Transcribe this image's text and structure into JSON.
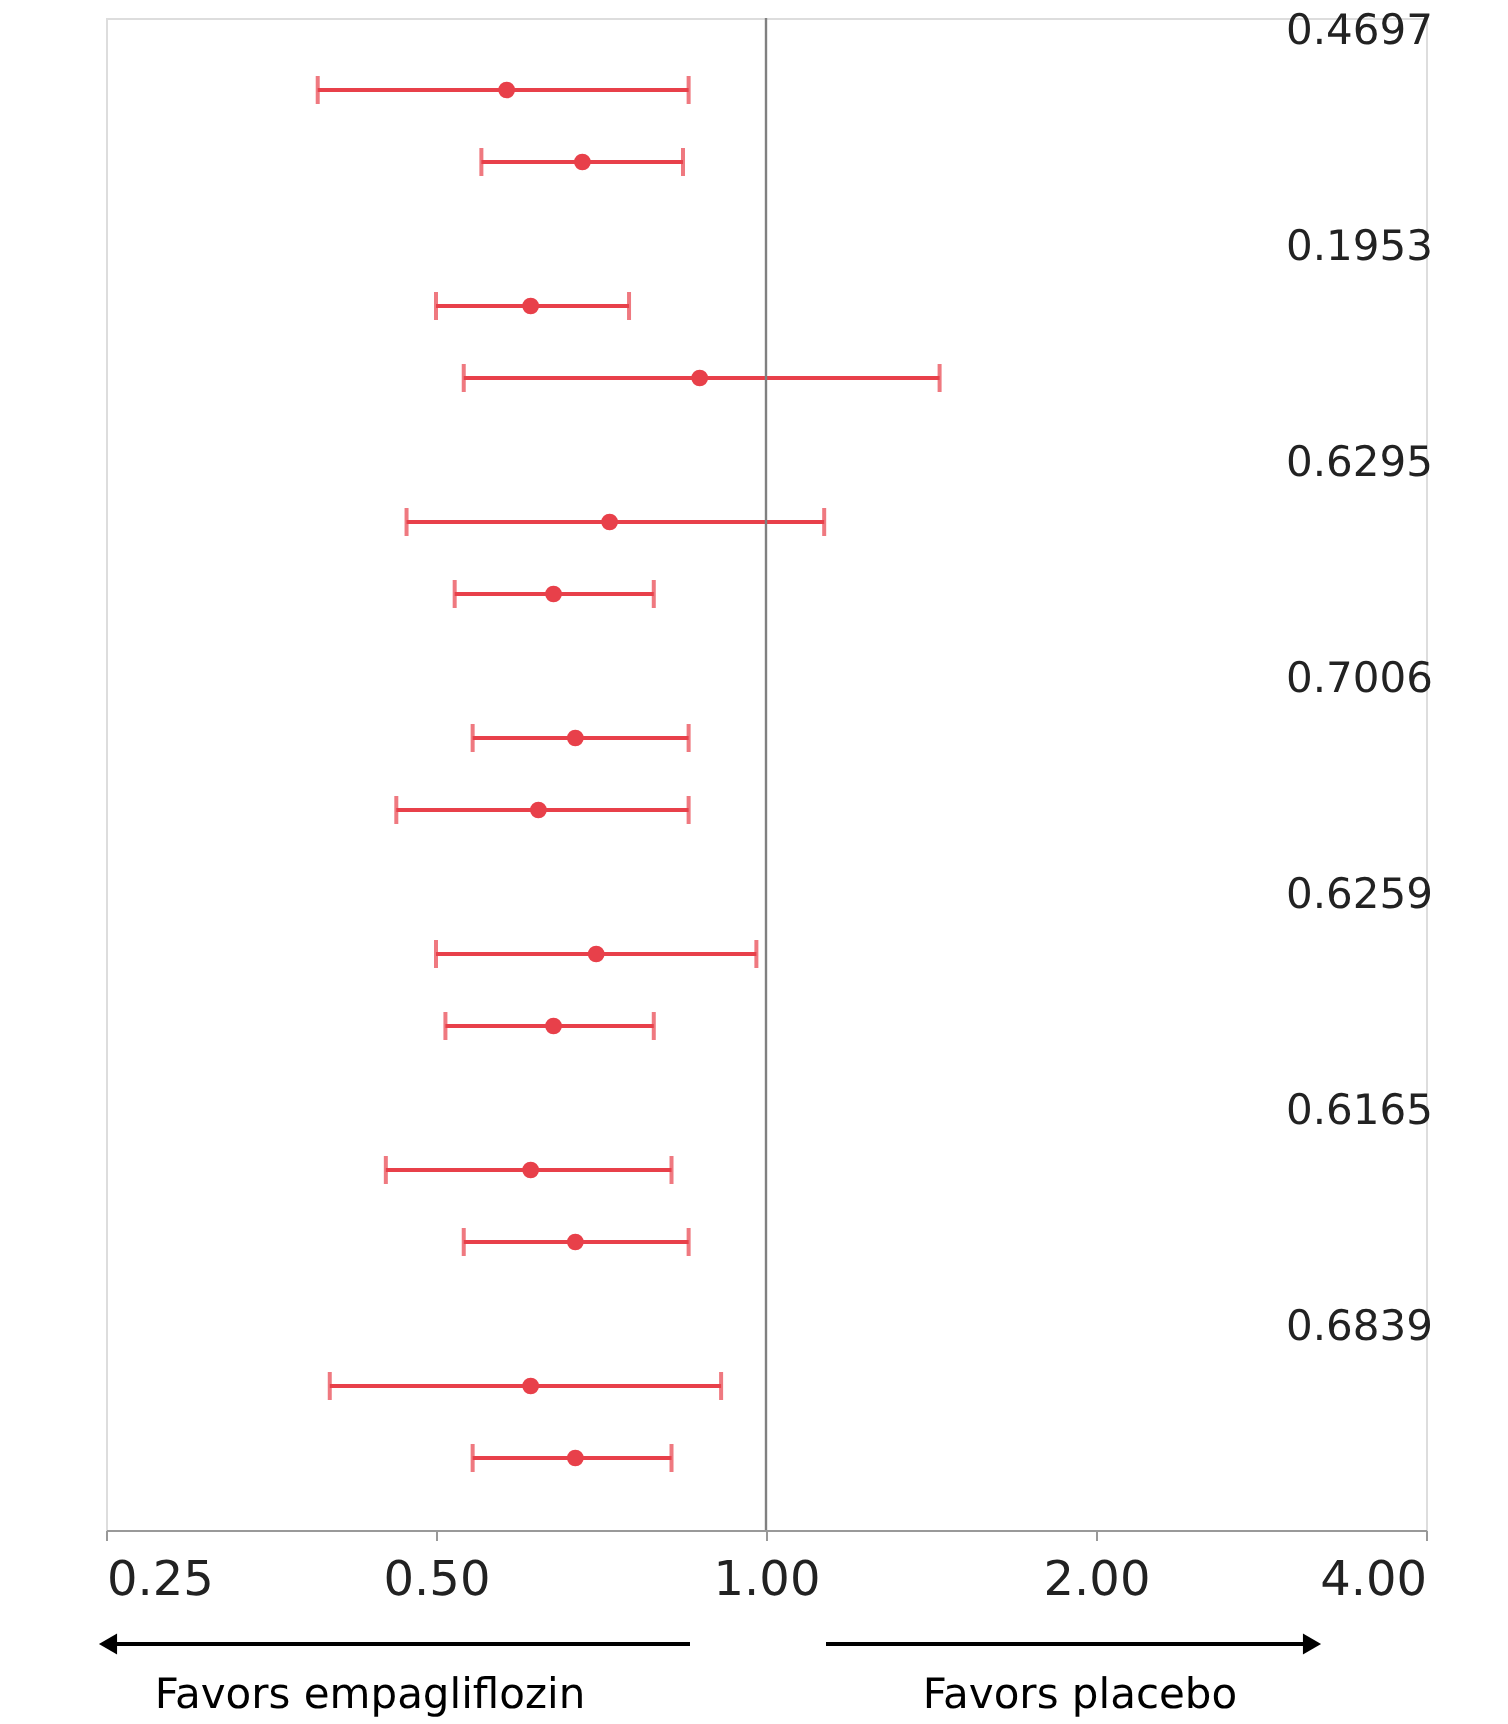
{
  "chart_data": {
    "type": "scatter",
    "orientation": "horizontal",
    "log": "x",
    "categories": [
      null,
      null,
      null,
      null,
      null,
      null,
      null,
      null,
      null,
      null,
      null,
      null,
      null,
      null
    ],
    "values": [
      0.58,
      0.68,
      0.61,
      0.87,
      0.72,
      0.64,
      0.67,
      0.62,
      0.7,
      0.64,
      0.61,
      0.67,
      0.61,
      0.67
    ],
    "errors": [
      [
        0.39,
        0.85
      ],
      [
        0.55,
        0.84
      ],
      [
        0.5,
        0.75
      ],
      [
        0.53,
        1.44
      ],
      [
        0.47,
        1.13
      ],
      [
        0.52,
        0.79
      ],
      [
        0.54,
        0.85
      ],
      [
        0.46,
        0.85
      ],
      [
        0.5,
        0.98
      ],
      [
        0.51,
        0.79
      ],
      [
        0.45,
        0.82
      ],
      [
        0.53,
        0.85
      ],
      [
        0.4,
        0.91
      ],
      [
        0.54,
        0.82
      ]
    ],
    "color": "#e8404a",
    "marker": "circle",
    "grid": false,
    "xlim": [
      0.25,
      4
    ],
    "xticks": [
      {
        "value": 0.25,
        "label": "0.25"
      },
      {
        "value": 0.5,
        "label": "0.50"
      },
      {
        "value": 1,
        "label": "1.00"
      },
      {
        "value": 2,
        "label": "2.00"
      },
      {
        "value": 4,
        "label": "4.00"
      }
    ],
    "ref_lines": [
      {
        "axis": "x",
        "value": 1,
        "color": "#808080"
      }
    ],
    "annotations": [
      "0.4697",
      "0.1953",
      "0.6295",
      "0.7006",
      "0.6259",
      "0.6165",
      "0.6839",
      "Favors empagliflozin",
      "Favors placebo"
    ]
  }
}
